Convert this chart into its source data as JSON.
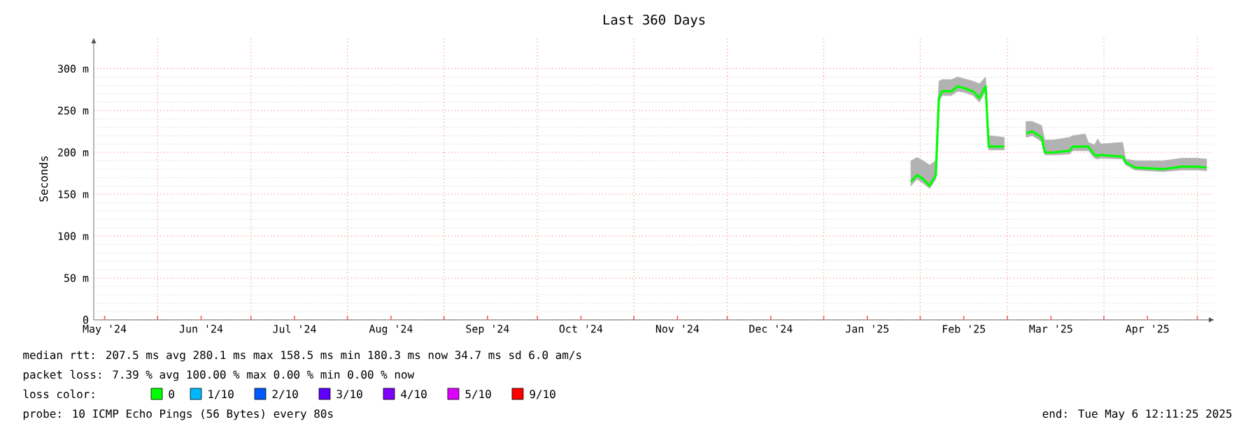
{
  "chart_data": {
    "type": "line",
    "title": "Last 360 Days",
    "ylabel": "Seconds",
    "x": [
      "2025-01-29",
      "2025-01-31",
      "2025-02-02",
      "2025-02-04",
      "2025-02-06",
      "2025-02-07",
      "2025-02-08",
      "2025-02-11",
      "2025-02-13",
      "2025-02-15",
      "2025-02-18",
      "2025-02-20",
      "2025-02-22",
      "2025-02-23",
      "2025-02-28",
      "2025-03-03",
      "2025-03-07",
      "2025-03-09",
      "2025-03-12",
      "2025-03-13",
      "2025-03-16",
      "2025-03-21",
      "2025-03-22",
      "2025-03-26",
      "2025-03-27",
      "2025-03-29",
      "2025-03-30",
      "2025-03-31",
      "2025-04-07",
      "2025-04-08",
      "2025-04-11",
      "2025-04-20",
      "2025-04-26",
      "2025-05-01",
      "2025-05-04"
    ],
    "series": [
      {
        "name": "0",
        "color": "#00ff00",
        "values": [
          165,
          173,
          168,
          160,
          173,
          265,
          273,
          273,
          279,
          277,
          273,
          265,
          279,
          207,
          207,
          null,
          223,
          225,
          218,
          200,
          200,
          202,
          207,
          207,
          207,
          197,
          196,
          197,
          195,
          188,
          182,
          180,
          183,
          183,
          182
        ],
        "lower": [
          160,
          168,
          163,
          157,
          168,
          260,
          268,
          268,
          273,
          272,
          268,
          260,
          273,
          203,
          203,
          null,
          218,
          220,
          213,
          197,
          197,
          198,
          202,
          202,
          202,
          193,
          192,
          193,
          192,
          185,
          179,
          177,
          179,
          179,
          178
        ],
        "upper": [
          190,
          194,
          190,
          185,
          190,
          285,
          287,
          287,
          290,
          288,
          285,
          282,
          290,
          220,
          218,
          null,
          237,
          237,
          232,
          215,
          215,
          218,
          220,
          222,
          212,
          209,
          216,
          210,
          212,
          192,
          190,
          190,
          193,
          193,
          192
        ]
      },
      {
        "name": "1/10",
        "color": "#00b8ff",
        "values": [
          null,
          null,
          null,
          null,
          null,
          null,
          null,
          null,
          null,
          null,
          null,
          null,
          null,
          null,
          null,
          null,
          null,
          null,
          null,
          null,
          null,
          null,
          null,
          null,
          null,
          null,
          null,
          null,
          null,
          null,
          null,
          null,
          null,
          null,
          null
        ]
      },
      {
        "name": "2/10",
        "color": "#0059ff",
        "values": [
          null,
          null,
          null,
          null,
          null,
          null,
          null,
          null,
          null,
          null,
          null,
          null,
          null,
          null,
          null,
          null,
          null,
          null,
          null,
          null,
          null,
          null,
          null,
          null,
          null,
          null,
          null,
          null,
          null,
          null,
          null,
          null,
          null,
          null,
          null
        ]
      },
      {
        "name": "3/10",
        "color": "#5e00ff",
        "values": [
          null,
          null,
          null,
          null,
          null,
          null,
          null,
          null,
          null,
          null,
          null,
          null,
          null,
          null,
          null,
          null,
          null,
          null,
          null,
          null,
          null,
          null,
          null,
          null,
          null,
          null,
          null,
          null,
          null,
          null,
          null,
          null,
          null,
          null,
          null
        ]
      },
      {
        "name": "4/10",
        "color": "#7e00ff",
        "values": [
          null,
          null,
          null,
          null,
          null,
          null,
          null,
          null,
          null,
          null,
          null,
          null,
          null,
          null,
          null,
          null,
          null,
          null,
          null,
          null,
          null,
          null,
          null,
          null,
          null,
          null,
          null,
          null,
          null,
          null,
          null,
          null,
          null,
          null,
          null
        ]
      },
      {
        "name": "5/10",
        "color": "#dd00ff",
        "values": [
          null,
          null,
          null,
          null,
          null,
          null,
          null,
          null,
          null,
          null,
          null,
          null,
          null,
          null,
          null,
          null,
          null,
          null,
          null,
          null,
          null,
          null,
          null,
          null,
          null,
          null,
          null,
          null,
          null,
          null,
          null,
          null,
          null,
          null,
          null
        ]
      },
      {
        "name": "9/10",
        "color": "#ff0000",
        "values": [
          null,
          null,
          null,
          null,
          null,
          null,
          null,
          null,
          null,
          null,
          null,
          null,
          null,
          null,
          null,
          null,
          null,
          null,
          null,
          null,
          null,
          null,
          null,
          null,
          null,
          null,
          null,
          null,
          null,
          null,
          null,
          null,
          null,
          null,
          null
        ]
      }
    ],
    "legend_title": "loss color:",
    "legend": "bottom",
    "grid": true,
    "marker": "none",
    "line_style": "solid",
    "xlim": [
      "2024-05-11T12:11",
      "2025-05-06T12:11"
    ],
    "xticks": [
      {
        "value": "2024-05-15",
        "label": "May '24"
      },
      {
        "value": "2024-06-15",
        "label": "Jun '24"
      },
      {
        "value": "2024-07-15",
        "label": "Jul '24"
      },
      {
        "value": "2024-08-15",
        "label": "Aug '24"
      },
      {
        "value": "2024-09-15",
        "label": "Sep '24"
      },
      {
        "value": "2024-10-15",
        "label": "Oct '24"
      },
      {
        "value": "2024-11-15",
        "label": "Nov '24"
      },
      {
        "value": "2024-12-15",
        "label": "Dec '24"
      },
      {
        "value": "2025-01-15",
        "label": "Jan '25"
      },
      {
        "value": "2025-02-15",
        "label": "Feb '25"
      },
      {
        "value": "2025-03-15",
        "label": "Mar '25"
      },
      {
        "value": "2025-04-15",
        "label": "Apr '25"
      },
      {
        "value": "2024-06-01",
        "label": null
      },
      {
        "value": "2024-07-01",
        "label": null
      },
      {
        "value": "2024-08-01",
        "label": null
      },
      {
        "value": "2024-09-01",
        "label": null
      },
      {
        "value": "2024-10-01",
        "label": null
      },
      {
        "value": "2024-11-01",
        "label": null
      },
      {
        "value": "2024-12-01",
        "label": null
      },
      {
        "value": "2025-01-01",
        "label": null
      },
      {
        "value": "2025-02-01",
        "label": null
      },
      {
        "value": "2025-03-01",
        "label": null
      },
      {
        "value": "2025-04-01",
        "label": null
      },
      {
        "value": "2025-05-01",
        "label": null
      }
    ],
    "ylim": [
      0,
      337
    ],
    "yticks": [
      {
        "value": 0,
        "label": "0"
      },
      {
        "value": 50,
        "label": "50 m"
      },
      {
        "value": 100,
        "label": "100 m"
      },
      {
        "value": 150,
        "label": "150 m"
      },
      {
        "value": 200,
        "label": "200 m"
      },
      {
        "value": 250,
        "label": "250 m"
      },
      {
        "value": 300,
        "label": "300 m"
      }
    ],
    "annotations": [
      "median rtt:  207.5 ms avg  280.1 ms max  158.5 ms min  180.3 ms now  34.7 ms sd  6.0   am/s",
      "packet loss: 7.39 % avg  100.00 % max  0.00 % min  0.00 % now",
      "probe:       10 ICMP Echo Pings (56 Bytes) every 80s",
      "end: Tue May  6 12:11:25 2025"
    ]
  }
}
